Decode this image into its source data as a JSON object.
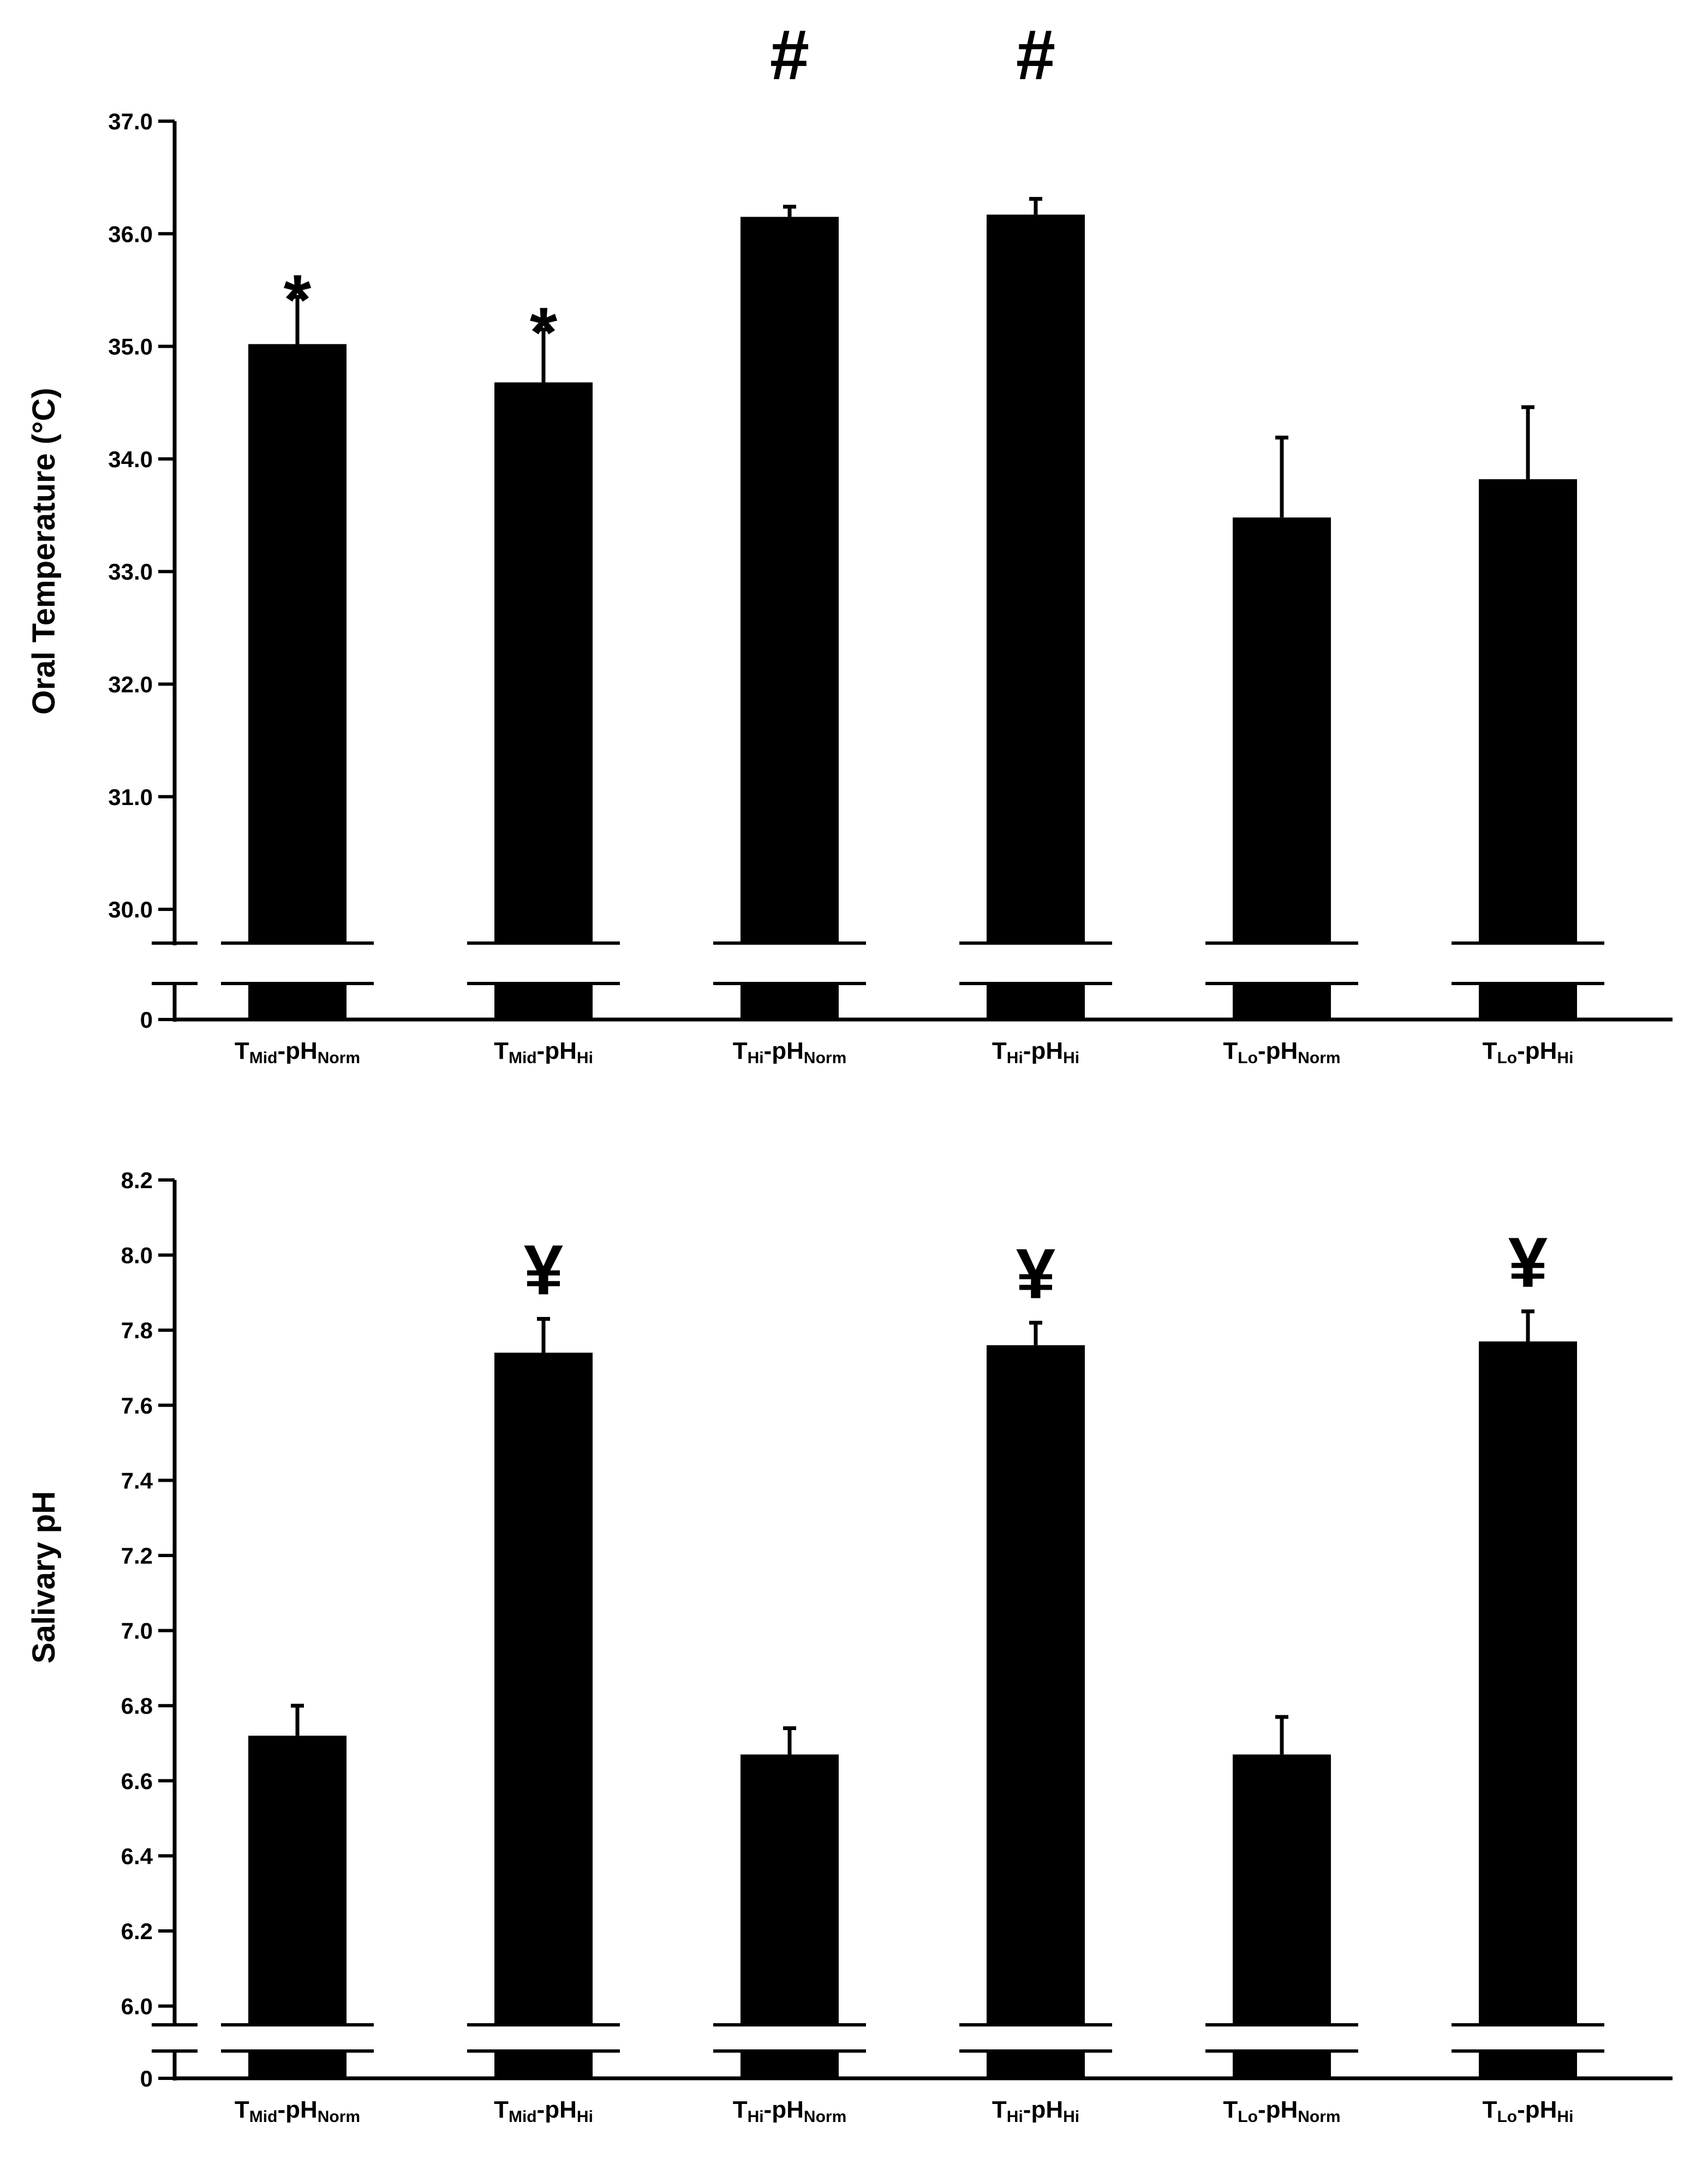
{
  "chart_data": [
    {
      "type": "bar",
      "ylabel": "Oral Temperature (°C)",
      "yticks": [
        "0",
        "30.0",
        "31.0",
        "32.0",
        "33.0",
        "34.0",
        "35.0",
        "36.0",
        "37.0"
      ],
      "ylim": [
        29.7,
        37.0
      ],
      "axis_break": true,
      "categories": [
        {
          "T": "T",
          "t_sub": "Mid",
          "dash": "-",
          "pH": "pH",
          "ph_sub": "Norm"
        },
        {
          "T": "T",
          "t_sub": "Mid",
          "dash": "-",
          "pH": "pH",
          "ph_sub": "Hi"
        },
        {
          "T": "T",
          "t_sub": "Hi",
          "dash": "-",
          "pH": "pH",
          "ph_sub": "Norm"
        },
        {
          "T": "T",
          "t_sub": "Hi",
          "dash": "-",
          "pH": "pH",
          "ph_sub": "Hi"
        },
        {
          "T": "T",
          "t_sub": "Lo",
          "dash": "-",
          "pH": "pH",
          "ph_sub": "Norm"
        },
        {
          "T": "T",
          "t_sub": "Lo",
          "dash": "-",
          "pH": "pH",
          "ph_sub": "Hi"
        }
      ],
      "values": [
        35.02,
        34.68,
        36.15,
        36.17,
        33.48,
        33.82
      ],
      "errors": [
        0.42,
        0.47,
        0.09,
        0.14,
        0.71,
        0.64
      ],
      "annotations": [
        "*",
        "*",
        "#",
        "#",
        "",
        ""
      ]
    },
    {
      "type": "bar",
      "ylabel": "Salivary pH",
      "yticks": [
        "0",
        "6.0",
        "6.2",
        "6.4",
        "6.6",
        "6.8",
        "7.0",
        "7.2",
        "7.4",
        "7.6",
        "7.8",
        "8.0",
        "8.2"
      ],
      "ylim": [
        5.95,
        8.2
      ],
      "axis_break": true,
      "categories": [
        {
          "T": "T",
          "t_sub": "Mid",
          "dash": "-",
          "pH": "pH",
          "ph_sub": "Norm"
        },
        {
          "T": "T",
          "t_sub": "Mid",
          "dash": "-",
          "pH": "pH",
          "ph_sub": "Hi"
        },
        {
          "T": "T",
          "t_sub": "Hi",
          "dash": "-",
          "pH": "pH",
          "ph_sub": "Norm"
        },
        {
          "T": "T",
          "t_sub": "Hi",
          "dash": "-",
          "pH": "pH",
          "ph_sub": "Hi"
        },
        {
          "T": "T",
          "t_sub": "Lo",
          "dash": "-",
          "pH": "pH",
          "ph_sub": "Norm"
        },
        {
          "T": "T",
          "t_sub": "Lo",
          "dash": "-",
          "pH": "pH",
          "ph_sub": "Hi"
        }
      ],
      "values": [
        6.72,
        7.74,
        6.67,
        7.76,
        6.67,
        7.77
      ],
      "errors": [
        0.08,
        0.09,
        0.07,
        0.06,
        0.1,
        0.08
      ],
      "annotations": [
        "",
        "¥",
        "",
        "¥",
        "",
        "¥"
      ]
    }
  ]
}
